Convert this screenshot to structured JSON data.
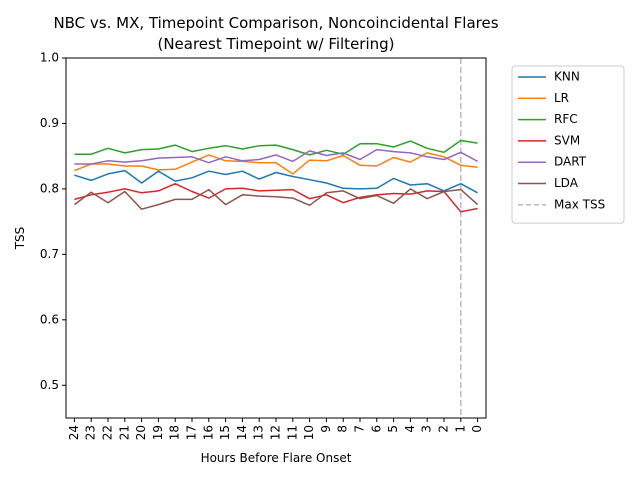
{
  "chart_data": {
    "type": "line",
    "title": "NBC vs. MX, Timepoint Comparison, Noncoincidental Flares",
    "subtitle": "(Nearest Timepoint w/ Filtering)",
    "xlabel": "Hours Before Flare Onset",
    "ylabel": "TSS",
    "x": [
      24,
      23,
      22,
      21,
      20,
      19,
      18,
      17,
      16,
      15,
      14,
      13,
      12,
      11,
      10,
      9,
      8,
      7,
      6,
      5,
      4,
      3,
      2,
      1,
      0
    ],
    "xlim": [
      24.5,
      -0.5
    ],
    "ylim": [
      0.45,
      1.0
    ],
    "yticks": [
      0.5,
      0.6,
      0.7,
      0.8,
      0.9,
      1.0
    ],
    "ytick_labels": [
      "0.5",
      "0.6",
      "0.7",
      "0.8",
      "0.9",
      "1.0"
    ],
    "grid": false,
    "legend_position": "outside-right-top",
    "series": [
      {
        "name": "KNN",
        "color": "#1f77b4",
        "values": [
          0.821,
          0.813,
          0.823,
          0.828,
          0.809,
          0.827,
          0.812,
          0.817,
          0.827,
          0.822,
          0.827,
          0.815,
          0.825,
          0.819,
          0.814,
          0.809,
          0.801,
          0.8,
          0.801,
          0.816,
          0.806,
          0.808,
          0.797,
          0.808,
          0.794
        ]
      },
      {
        "name": "LR",
        "color": "#ff7f0e",
        "values": [
          0.828,
          0.838,
          0.838,
          0.835,
          0.835,
          0.829,
          0.83,
          0.841,
          0.852,
          0.843,
          0.842,
          0.84,
          0.84,
          0.823,
          0.844,
          0.843,
          0.851,
          0.836,
          0.835,
          0.848,
          0.841,
          0.855,
          0.849,
          0.836,
          0.833
        ]
      },
      {
        "name": "RFC",
        "color": "#2ca02c",
        "values": [
          0.853,
          0.853,
          0.862,
          0.855,
          0.86,
          0.861,
          0.867,
          0.857,
          0.862,
          0.866,
          0.861,
          0.866,
          0.867,
          0.86,
          0.852,
          0.859,
          0.853,
          0.869,
          0.869,
          0.864,
          0.873,
          0.862,
          0.856,
          0.874,
          0.87
        ]
      },
      {
        "name": "SVM",
        "color": "#d62728",
        "values": [
          0.784,
          0.791,
          0.795,
          0.8,
          0.794,
          0.797,
          0.808,
          0.796,
          0.786,
          0.8,
          0.801,
          0.797,
          0.798,
          0.799,
          0.785,
          0.791,
          0.779,
          0.787,
          0.791,
          0.793,
          0.792,
          0.797,
          0.796,
          0.765,
          0.77
        ]
      },
      {
        "name": "DART",
        "color": "#9467bd",
        "values": [
          0.838,
          0.838,
          0.843,
          0.841,
          0.843,
          0.847,
          0.848,
          0.849,
          0.84,
          0.849,
          0.843,
          0.845,
          0.852,
          0.842,
          0.858,
          0.851,
          0.855,
          0.845,
          0.86,
          0.857,
          0.855,
          0.849,
          0.845,
          0.856,
          0.842
        ]
      },
      {
        "name": "LDA",
        "color": "#8c564b",
        "values": [
          0.776,
          0.795,
          0.779,
          0.796,
          0.769,
          0.776,
          0.784,
          0.784,
          0.799,
          0.776,
          0.791,
          0.789,
          0.788,
          0.786,
          0.775,
          0.794,
          0.797,
          0.785,
          0.79,
          0.778,
          0.8,
          0.785,
          0.796,
          0.799,
          0.776
        ]
      }
    ],
    "reference_line": {
      "name": "Max TSS",
      "x": 1,
      "color": "#bbbbbb",
      "style": "dashed"
    }
  }
}
